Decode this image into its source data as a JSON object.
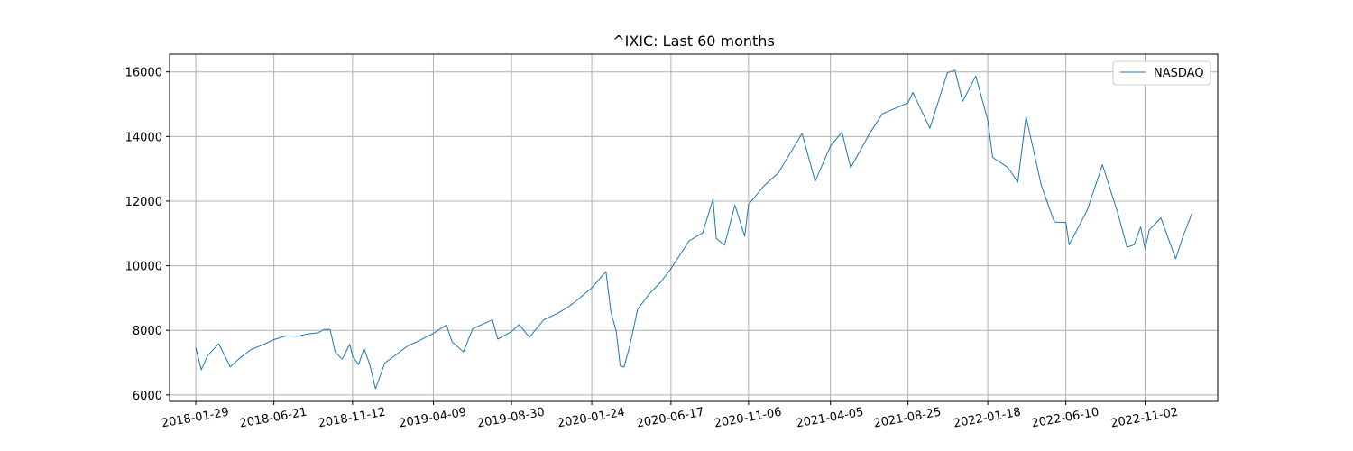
{
  "chart_data": {
    "type": "line",
    "title": "^IXIC: Last 60 months",
    "xlabel": "",
    "ylabel": "",
    "x_range": [
      "2017-12-12",
      "2023-03-15"
    ],
    "ylim": [
      5800,
      16550
    ],
    "grid": true,
    "legend_position": "top-right",
    "x_tick_labels": [
      "2018-01-29",
      "2018-06-21",
      "2018-11-12",
      "2019-04-09",
      "2019-08-30",
      "2020-01-24",
      "2020-06-17",
      "2020-11-06",
      "2021-04-05",
      "2021-08-25",
      "2022-01-18",
      "2022-06-10",
      "2022-11-02",
      ""
    ],
    "x_tick_dates": [
      "2018-01-29",
      "2018-06-21",
      "2018-11-12",
      "2019-04-09",
      "2019-08-30",
      "2020-01-24",
      "2020-06-17",
      "2020-11-06",
      "2021-04-05",
      "2021-08-25",
      "2022-01-18",
      "2022-06-10",
      "2022-11-02",
      "2023-03-27"
    ],
    "y_ticks": [
      6000,
      8000,
      10000,
      12000,
      14000,
      16000
    ],
    "y_tick_labels": [
      "6000",
      "8000",
      "10000",
      "12000",
      "14000",
      "16000"
    ],
    "series": [
      {
        "name": "NASDAQ",
        "color": "#1f77b4",
        "points": [
          [
            "2018-01-29",
            7466
          ],
          [
            "2018-02-08",
            6777
          ],
          [
            "2018-02-20",
            7230
          ],
          [
            "2018-03-12",
            7588
          ],
          [
            "2018-04-02",
            6870
          ],
          [
            "2018-04-20",
            7146
          ],
          [
            "2018-05-10",
            7404
          ],
          [
            "2018-06-01",
            7554
          ],
          [
            "2018-06-21",
            7712
          ],
          [
            "2018-07-13",
            7826
          ],
          [
            "2018-08-03",
            7812
          ],
          [
            "2018-08-22",
            7889
          ],
          [
            "2018-09-10",
            7924
          ],
          [
            "2018-09-21",
            8028
          ],
          [
            "2018-10-02",
            8025
          ],
          [
            "2018-10-11",
            7329
          ],
          [
            "2018-10-24",
            7108
          ],
          [
            "2018-11-07",
            7570
          ],
          [
            "2018-11-12",
            7200
          ],
          [
            "2018-11-23",
            6938
          ],
          [
            "2018-12-03",
            7441
          ],
          [
            "2018-12-14",
            6910
          ],
          [
            "2018-12-24",
            6193
          ],
          [
            "2019-01-10",
            6986
          ],
          [
            "2019-02-01",
            7263
          ],
          [
            "2019-02-22",
            7527
          ],
          [
            "2019-03-15",
            7688
          ],
          [
            "2019-04-09",
            7910
          ],
          [
            "2019-05-03",
            8164
          ],
          [
            "2019-05-13",
            7647
          ],
          [
            "2019-06-03",
            7333
          ],
          [
            "2019-06-20",
            8051
          ],
          [
            "2019-07-26",
            8330
          ],
          [
            "2019-08-05",
            7726
          ],
          [
            "2019-08-30",
            7962
          ],
          [
            "2019-09-13",
            8176
          ],
          [
            "2019-10-02",
            7785
          ],
          [
            "2019-10-28",
            8325
          ],
          [
            "2019-11-22",
            8519
          ],
          [
            "2019-12-13",
            8734
          ],
          [
            "2019-12-31",
            8972
          ],
          [
            "2020-01-24",
            9314
          ],
          [
            "2020-02-19",
            9817
          ],
          [
            "2020-02-28",
            8567
          ],
          [
            "2020-03-09",
            7950
          ],
          [
            "2020-03-16",
            6904
          ],
          [
            "2020-03-23",
            6860
          ],
          [
            "2020-04-02",
            7487
          ],
          [
            "2020-04-17",
            8650
          ],
          [
            "2020-05-08",
            9121
          ],
          [
            "2020-05-29",
            9489
          ],
          [
            "2020-06-17",
            9910
          ],
          [
            "2020-07-20",
            10767
          ],
          [
            "2020-08-14",
            11019
          ],
          [
            "2020-09-02",
            12056
          ],
          [
            "2020-09-08",
            10847
          ],
          [
            "2020-09-23",
            10633
          ],
          [
            "2020-10-12",
            11876
          ],
          [
            "2020-10-30",
            10912
          ],
          [
            "2020-11-06",
            11895
          ],
          [
            "2020-12-04",
            12464
          ],
          [
            "2020-12-31",
            12888
          ],
          [
            "2021-02-12",
            14095
          ],
          [
            "2021-03-08",
            12609
          ],
          [
            "2021-04-05",
            13705
          ],
          [
            "2021-04-26",
            14138
          ],
          [
            "2021-05-12",
            13032
          ],
          [
            "2021-06-15",
            14072
          ],
          [
            "2021-07-09",
            14701
          ],
          [
            "2021-08-25",
            15042
          ],
          [
            "2021-09-03",
            15363
          ],
          [
            "2021-10-04",
            14255
          ],
          [
            "2021-11-05",
            15972
          ],
          [
            "2021-11-19",
            16057
          ],
          [
            "2021-12-03",
            15085
          ],
          [
            "2021-12-27",
            15871
          ],
          [
            "2022-01-18",
            14506
          ],
          [
            "2022-01-27",
            13352
          ],
          [
            "2022-02-24",
            13037
          ],
          [
            "2022-03-14",
            12581
          ],
          [
            "2022-03-29",
            14619
          ],
          [
            "2022-04-26",
            12490
          ],
          [
            "2022-05-20",
            11354
          ],
          [
            "2022-06-10",
            11340
          ],
          [
            "2022-06-16",
            10646
          ],
          [
            "2022-07-19",
            11713
          ],
          [
            "2022-08-16",
            13128
          ],
          [
            "2022-09-13",
            11634
          ],
          [
            "2022-09-30",
            10576
          ],
          [
            "2022-10-13",
            10649
          ],
          [
            "2022-10-25",
            11199
          ],
          [
            "2022-11-02",
            10524
          ],
          [
            "2022-11-10",
            11114
          ],
          [
            "2022-12-01",
            11482
          ],
          [
            "2022-12-28",
            10214
          ],
          [
            "2023-01-11",
            10931
          ],
          [
            "2023-01-27",
            11621
          ]
        ]
      }
    ]
  }
}
